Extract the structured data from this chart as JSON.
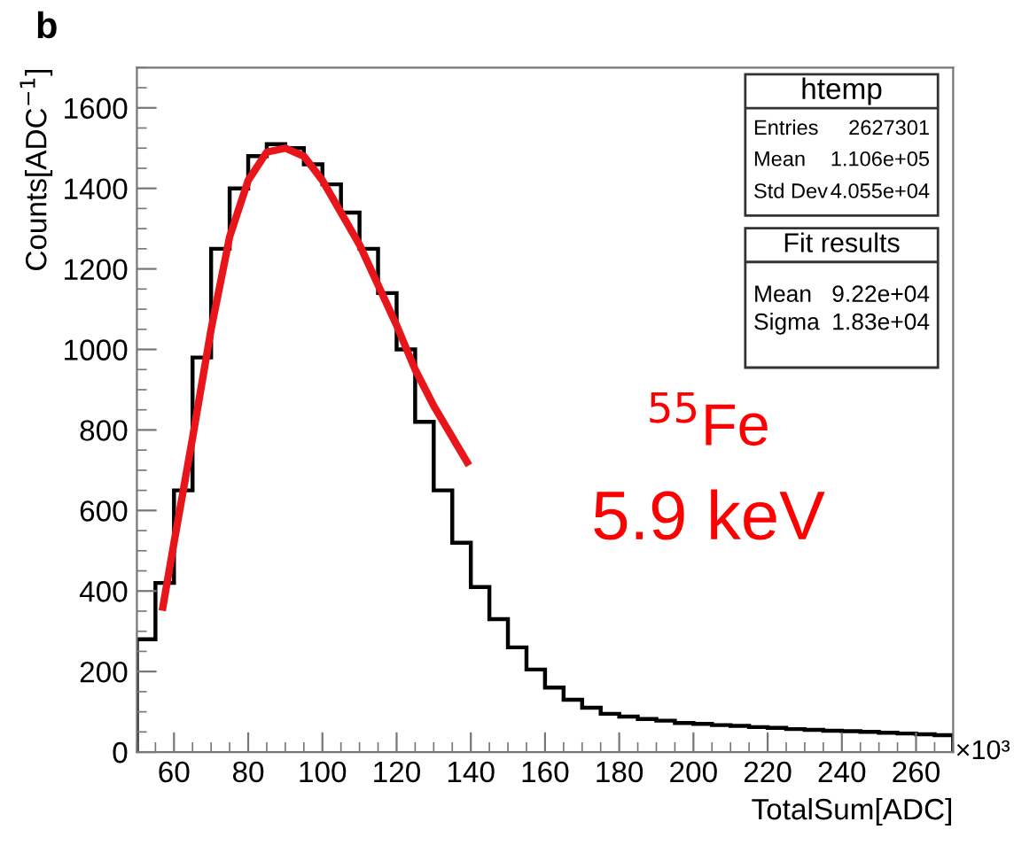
{
  "chart_data": {
    "type": "histogram",
    "xlabel": "TotalSum[ADC]",
    "ylabel": "Counts[ADC$^{−1}$]",
    "bins": [
      50,
      55,
      60,
      65,
      70,
      75,
      80,
      85,
      90,
      95,
      100,
      105,
      110,
      115,
      120,
      125,
      130,
      135,
      140,
      145,
      150,
      155,
      160,
      165,
      170,
      175,
      180,
      185,
      190,
      195,
      200,
      205,
      210,
      215,
      220,
      225,
      230,
      235,
      240,
      245,
      250,
      255,
      260,
      265,
      270
    ],
    "values": [
      280,
      420,
      650,
      980,
      1250,
      1400,
      1480,
      1510,
      1500,
      1460,
      1410,
      1340,
      1250,
      1140,
      1000,
      820,
      650,
      520,
      410,
      330,
      260,
      205,
      160,
      130,
      110,
      95,
      88,
      82,
      78,
      72,
      70,
      67,
      65,
      62,
      60,
      57,
      55,
      53,
      52,
      50,
      48,
      46,
      44,
      42
    ],
    "color": "#000000",
    "series": [
      {
        "type": "line",
        "color": "#e8161b",
        "x": [
          57,
          60,
          65,
          70,
          75,
          80,
          85,
          90,
          95,
          100,
          110,
          120,
          125,
          130,
          139
        ],
        "values": [
          360,
          520,
          780,
          1050,
          1280,
          1420,
          1490,
          1500,
          1480,
          1420,
          1260,
          1060,
          950,
          860,
          720
        ]
      }
    ],
    "xlim": [
      50,
      270
    ],
    "xticks": [
      60,
      80,
      100,
      120,
      140,
      160,
      180,
      200,
      220,
      240,
      260
    ],
    "ylim": [
      0,
      1700
    ],
    "yticks": [
      0,
      200,
      400,
      600,
      800,
      1000,
      1200,
      1400,
      1600
    ],
    "grid": false,
    "annotations": [
      "b",
      "×10³",
      "htemp",
      "Entries 2627301",
      "Mean 1.106e+05",
      "Std Dev 4.055e+04",
      "Fit results",
      "Mean 9.22e+04",
      "Sigma 1.83e+04",
      "$^{55}$Fe",
      "5.9 keV"
    ]
  }
}
